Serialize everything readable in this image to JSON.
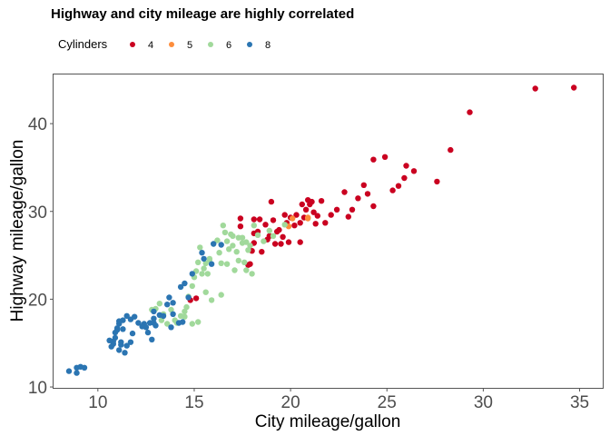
{
  "chart_data": {
    "type": "scatter",
    "title": "Highway and city mileage are highly correlated",
    "xlabel": "City mileage/gallon",
    "ylabel": "Highway mileage/gallon",
    "xlim": [
      7.7,
      36.2
    ],
    "ylim": [
      9.9,
      45.6
    ],
    "xticks": [
      10,
      15,
      20,
      25,
      30,
      35
    ],
    "yticks": [
      10,
      20,
      30,
      40
    ],
    "grid": false,
    "legend": {
      "title": "Cylinders",
      "position": "top-left"
    },
    "series": [
      {
        "name": "4",
        "color": "#ca0020",
        "points": [
          [
            34.7,
            44.1
          ],
          [
            32.7,
            44.0
          ],
          [
            29.3,
            41.3
          ],
          [
            28.3,
            37.0
          ],
          [
            27.6,
            33.4
          ],
          [
            26.4,
            34.6
          ],
          [
            26.0,
            35.2
          ],
          [
            25.9,
            33.8
          ],
          [
            25.6,
            32.9
          ],
          [
            25.3,
            32.4
          ],
          [
            24.9,
            36.2
          ],
          [
            24.3,
            35.9
          ],
          [
            24.3,
            30.6
          ],
          [
            24.0,
            32.0
          ],
          [
            23.8,
            33.0
          ],
          [
            23.5,
            31.5
          ],
          [
            23.2,
            30.2
          ],
          [
            23.0,
            29.4
          ],
          [
            22.8,
            32.2
          ],
          [
            22.4,
            30.2
          ],
          [
            22.1,
            29.6
          ],
          [
            21.8,
            28.7
          ],
          [
            21.6,
            31.2
          ],
          [
            21.4,
            29.5
          ],
          [
            21.3,
            28.6
          ],
          [
            21.2,
            29.9
          ],
          [
            21.1,
            31.1
          ],
          [
            21.0,
            30.8
          ],
          [
            20.9,
            31.3
          ],
          [
            20.8,
            30.2
          ],
          [
            20.7,
            29.3
          ],
          [
            20.6,
            30.8
          ],
          [
            20.5,
            28.7
          ],
          [
            20.3,
            29.6
          ],
          [
            20.2,
            28.4
          ],
          [
            20.0,
            29.3
          ],
          [
            19.9,
            26.5
          ],
          [
            19.8,
            28.7
          ],
          [
            19.7,
            29.6
          ],
          [
            19.6,
            27.1
          ],
          [
            19.5,
            26.3
          ],
          [
            19.3,
            27.7
          ],
          [
            19.2,
            26.3
          ],
          [
            19.1,
            29.0
          ],
          [
            19.0,
            31.1
          ],
          [
            18.9,
            27.2
          ],
          [
            18.8,
            26.8
          ],
          [
            18.7,
            28.5
          ],
          [
            18.5,
            25.4
          ],
          [
            18.3,
            27.7
          ],
          [
            18.1,
            26.4
          ],
          [
            18.0,
            25.5
          ],
          [
            17.8,
            23.9
          ],
          [
            17.9,
            24.0
          ],
          [
            18.1,
            27.5
          ],
          [
            18.4,
            29.1
          ],
          [
            17.4,
            29.2
          ],
          [
            17.4,
            28.3
          ],
          [
            18.1,
            29.1
          ],
          [
            14.8,
            19.9
          ],
          [
            15.1,
            20.1
          ],
          [
            19.4,
            27.9
          ],
          [
            20.5,
            26.5
          ]
        ]
      },
      {
        "name": "5",
        "color": "#fd8d3c",
        "points": [
          [
            20.1,
            29.2
          ],
          [
            20.9,
            29.2
          ],
          [
            20.9,
            29.3
          ],
          [
            19.9,
            28.3
          ]
        ]
      },
      {
        "name": "6",
        "color": "#a1d99b",
        "points": [
          [
            19.7,
            28.5
          ],
          [
            19.1,
            27.2
          ],
          [
            18.9,
            27.8
          ],
          [
            18.6,
            26.6
          ],
          [
            18.3,
            27.3
          ],
          [
            18.1,
            28.4
          ],
          [
            17.9,
            26.1
          ],
          [
            17.7,
            26.5
          ],
          [
            17.8,
            25.6
          ],
          [
            17.3,
            27.0
          ],
          [
            17.5,
            26.4
          ],
          [
            17.6,
            24.2
          ],
          [
            17.3,
            24.4
          ],
          [
            17.1,
            23.3
          ],
          [
            16.8,
            25.7
          ],
          [
            16.7,
            24.0
          ],
          [
            16.5,
            28.4
          ],
          [
            16.6,
            27.6
          ],
          [
            16.2,
            26.7
          ],
          [
            16.3,
            25.3
          ],
          [
            16.0,
            26.3
          ],
          [
            15.8,
            24.6
          ],
          [
            15.6,
            24.1
          ],
          [
            15.7,
            22.9
          ],
          [
            15.5,
            23.5
          ],
          [
            15.6,
            20.8
          ],
          [
            15.4,
            22.9
          ],
          [
            15.3,
            25.9
          ],
          [
            15.2,
            24.2
          ],
          [
            15.1,
            23.2
          ],
          [
            15.0,
            22.5
          ],
          [
            14.9,
            21.5
          ],
          [
            14.7,
            20.3
          ],
          [
            14.6,
            19.1
          ],
          [
            14.5,
            18.6
          ],
          [
            14.3,
            18.1
          ],
          [
            14.1,
            17.3
          ],
          [
            14.0,
            17.6
          ],
          [
            13.8,
            18.8
          ],
          [
            13.6,
            17.2
          ],
          [
            13.4,
            18.3
          ],
          [
            13.2,
            19.5
          ],
          [
            13.0,
            18.9
          ],
          [
            13.3,
            17.6
          ],
          [
            14.9,
            17.2
          ],
          [
            15.9,
            19.9
          ],
          [
            15.8,
            24.5
          ],
          [
            18.0,
            22.9
          ],
          [
            16.9,
            27.4
          ],
          [
            16.4,
            20.5
          ],
          [
            17.2,
            25.4
          ],
          [
            17.5,
            27.0
          ],
          [
            17.0,
            26.1
          ],
          [
            16.4,
            24.1
          ],
          [
            17.0,
            27.2
          ],
          [
            17.7,
            23.3
          ],
          [
            12.8,
            18.8
          ],
          [
            15.2,
            17.4
          ],
          [
            14.5,
            18.0
          ],
          [
            16.7,
            26.6
          ]
        ]
      },
      {
        "name": "8",
        "color": "#2b75b2",
        "points": [
          [
            16.4,
            26.2
          ],
          [
            16.0,
            26.3
          ],
          [
            15.9,
            24.0
          ],
          [
            15.4,
            25.3
          ],
          [
            15.5,
            24.6
          ],
          [
            14.9,
            22.9
          ],
          [
            14.5,
            21.8
          ],
          [
            14.3,
            21.4
          ],
          [
            14.7,
            20.2
          ],
          [
            13.7,
            20.2
          ],
          [
            13.9,
            19.6
          ],
          [
            13.6,
            19.4
          ],
          [
            13.2,
            18.2
          ],
          [
            12.9,
            18.6
          ],
          [
            12.9,
            17.8
          ],
          [
            12.7,
            17.3
          ],
          [
            12.5,
            16.8
          ],
          [
            12.8,
            15.4
          ],
          [
            12.4,
            17.2
          ],
          [
            12.1,
            17.3
          ],
          [
            11.7,
            17.7
          ],
          [
            11.8,
            16.1
          ],
          [
            11.5,
            18.1
          ],
          [
            11.3,
            17.6
          ],
          [
            11.3,
            16.6
          ],
          [
            11.1,
            17.2
          ],
          [
            11.0,
            16.7
          ],
          [
            10.9,
            15.6
          ],
          [
            10.8,
            15.2
          ],
          [
            10.8,
            14.9
          ],
          [
            11.2,
            14.8
          ],
          [
            11.1,
            14.2
          ],
          [
            11.4,
            13.9
          ],
          [
            11.2,
            15.1
          ],
          [
            10.9,
            16.2
          ],
          [
            11.1,
            17.5
          ],
          [
            12.9,
            17.3
          ],
          [
            13.4,
            18.1
          ],
          [
            13.0,
            17.0
          ],
          [
            8.5,
            11.8
          ],
          [
            8.9,
            12.2
          ],
          [
            9.1,
            12.3
          ],
          [
            9.3,
            12.2
          ],
          [
            8.9,
            11.6
          ],
          [
            11.7,
            15.1
          ],
          [
            12.6,
            16.2
          ],
          [
            14.2,
            17.3
          ],
          [
            13.9,
            18.3
          ],
          [
            14.4,
            17.4
          ],
          [
            11.5,
            14.7
          ],
          [
            10.6,
            15.3
          ],
          [
            11.9,
            18.0
          ],
          [
            12.3,
            16.9
          ],
          [
            13.8,
            16.8
          ],
          [
            11.0,
            16.5
          ],
          [
            10.7,
            14.6
          ]
        ]
      }
    ]
  }
}
